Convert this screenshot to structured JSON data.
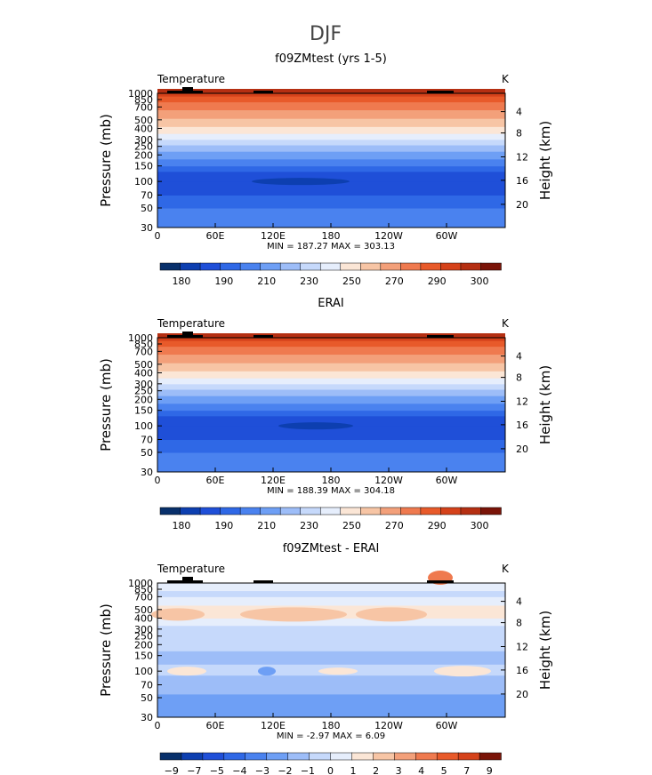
{
  "figure": {
    "title": "DJF"
  },
  "chart_data": [
    {
      "type": "heatmap",
      "title": "f09ZMtest (yrs 1-5)",
      "left_label": "Temperature",
      "units": "K",
      "ylabel": "Pressure (mb)",
      "ylabel_right": "Height (km)",
      "pressure_ticks": [
        "30",
        "50",
        "70",
        "100",
        "150",
        "200",
        "250",
        "300",
        "400",
        "500",
        "700",
        "850",
        "1000"
      ],
      "height_ticks": [
        "20",
        "16",
        "12",
        "8",
        "4"
      ],
      "lon_ticks": [
        "0",
        "60E",
        "120E",
        "180",
        "120W",
        "60W"
      ],
      "stats": "MIN = 187.27 MAX = 303.13",
      "stats_min": 187.27,
      "stats_max": 303.13,
      "colorbar_labels": [
        "180",
        "190",
        "210",
        "230",
        "250",
        "270",
        "290",
        "300"
      ],
      "colorbar_colors": [
        "#08306b",
        "#0d3fb0",
        "#1f4fd8",
        "#2f68e6",
        "#4a82ef",
        "#6e9ff5",
        "#9dbdf8",
        "#c6d9fb",
        "#e6eefc",
        "#fbe6d6",
        "#f7c5a5",
        "#f3a07a",
        "#ef7a4f",
        "#e85a2a",
        "#d5421a",
        "#b52f12",
        "#7a1408"
      ],
      "temperature_profile": [
        {
          "p": 30,
          "t": 214
        },
        {
          "p": 50,
          "t": 207
        },
        {
          "p": 70,
          "t": 203
        },
        {
          "p": 100,
          "t": 199
        },
        {
          "p": 150,
          "t": 212
        },
        {
          "p": 200,
          "t": 220
        },
        {
          "p": 250,
          "t": 226
        },
        {
          "p": 300,
          "t": 235
        },
        {
          "p": 400,
          "t": 248
        },
        {
          "p": 500,
          "t": 256
        },
        {
          "p": 700,
          "t": 272
        },
        {
          "p": 850,
          "t": 280
        },
        {
          "p": 1000,
          "t": 290
        }
      ]
    },
    {
      "type": "heatmap",
      "title": "ERAI",
      "left_label": "Temperature",
      "units": "K",
      "ylabel": "Pressure (mb)",
      "ylabel_right": "Height (km)",
      "pressure_ticks": [
        "30",
        "50",
        "70",
        "100",
        "150",
        "200",
        "250",
        "300",
        "400",
        "500",
        "700",
        "850",
        "1000"
      ],
      "height_ticks": [
        "20",
        "16",
        "12",
        "8",
        "4"
      ],
      "lon_ticks": [
        "0",
        "60E",
        "120E",
        "180",
        "120W",
        "60W"
      ],
      "stats": "MIN = 188.39 MAX = 304.18",
      "stats_min": 188.39,
      "stats_max": 304.18,
      "colorbar_labels": [
        "180",
        "190",
        "210",
        "230",
        "250",
        "270",
        "290",
        "300"
      ],
      "colorbar_colors": [
        "#08306b",
        "#0d3fb0",
        "#1f4fd8",
        "#2f68e6",
        "#4a82ef",
        "#6e9ff5",
        "#9dbdf8",
        "#c6d9fb",
        "#e6eefc",
        "#fbe6d6",
        "#f7c5a5",
        "#f3a07a",
        "#ef7a4f",
        "#e85a2a",
        "#d5421a",
        "#b52f12",
        "#7a1408"
      ]
    },
    {
      "type": "heatmap",
      "title": "f09ZMtest - ERAI",
      "left_label": "Temperature",
      "units": "K",
      "ylabel": "Pressure (mb)",
      "ylabel_right": "Height (km)",
      "pressure_ticks": [
        "30",
        "50",
        "70",
        "100",
        "150",
        "200",
        "250",
        "300",
        "400",
        "500",
        "700",
        "850",
        "1000"
      ],
      "height_ticks": [
        "20",
        "16",
        "12",
        "8",
        "4"
      ],
      "lon_ticks": [
        "0",
        "60E",
        "120E",
        "180",
        "120W",
        "60W"
      ],
      "stats": "MIN = -2.97 MAX = 6.09",
      "stats_min": -2.97,
      "stats_max": 6.09,
      "colorbar_labels": [
        "−9",
        "−7",
        "−5",
        "−4",
        "−3",
        "−2",
        "−1",
        "0",
        "1",
        "2",
        "3",
        "4",
        "5",
        "7",
        "9"
      ],
      "colorbar_colors": [
        "#08306b",
        "#0d3fb0",
        "#1f4fd8",
        "#2f68e6",
        "#4a82ef",
        "#6e9ff5",
        "#9dbdf8",
        "#c6d9fb",
        "#e6eefc",
        "#fbe6d6",
        "#f7c5a5",
        "#f3a07a",
        "#ef7a4f",
        "#e85a2a",
        "#d5421a",
        "#7a1408"
      ]
    }
  ]
}
